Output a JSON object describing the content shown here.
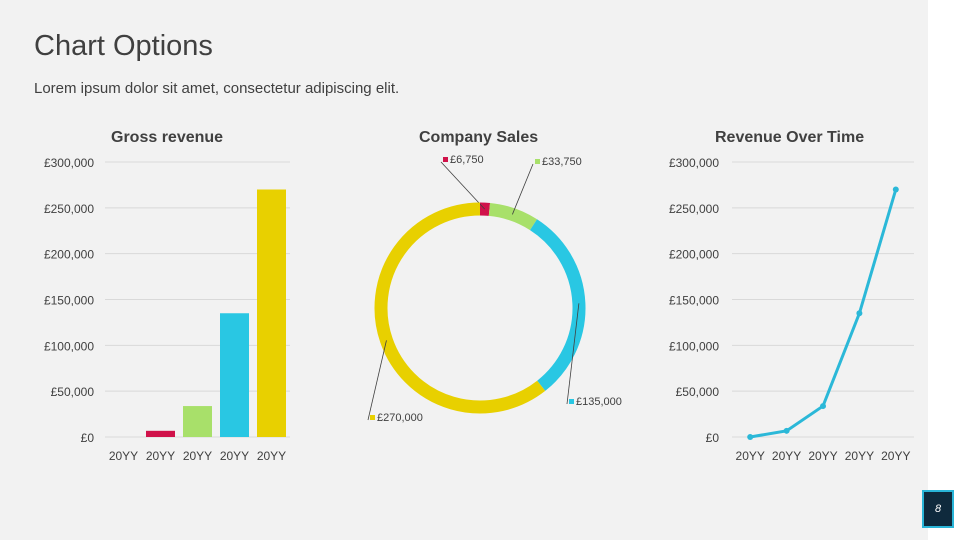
{
  "slide": {
    "title": "Chart Options",
    "subtitle": "Lorem ipsum dolor sit amet, consectetur adipiscing elit.",
    "page_number": "8"
  },
  "colors": {
    "red": "#d0124a",
    "green": "#a8e06a",
    "blue": "#29c7e3",
    "yellow": "#e8d000",
    "line": "#2bb8d8"
  },
  "chart_data": [
    {
      "type": "bar",
      "title": "Gross revenue",
      "categories": [
        "20YY",
        "20YY",
        "20YY",
        "20YY",
        "20YY"
      ],
      "values": [
        0,
        6750,
        33750,
        135000,
        270000
      ],
      "bar_colors": [
        "#d0124a",
        "#d0124a",
        "#a8e06a",
        "#29c7e3",
        "#e8d000"
      ],
      "ylim": [
        0,
        300000
      ],
      "yticks": [
        "£300,000",
        "£250,000",
        "£200,000",
        "£150,000",
        "£100,000",
        "£50,000",
        "£0"
      ],
      "grid": true
    },
    {
      "type": "pie",
      "title": "Company Sales",
      "slices": [
        {
          "label": "£6,750",
          "value": 6750,
          "color": "#d0124a"
        },
        {
          "label": "£33,750",
          "value": 33750,
          "color": "#a8e06a"
        },
        {
          "label": "£135,000",
          "value": 135000,
          "color": "#29c7e3"
        },
        {
          "label": "£270,000",
          "value": 270000,
          "color": "#e8d000"
        }
      ]
    },
    {
      "type": "line",
      "title": "Revenue Over Time",
      "categories": [
        "20YY",
        "20YY",
        "20YY",
        "20YY",
        "20YY"
      ],
      "values": [
        0,
        6750,
        33750,
        135000,
        270000
      ],
      "ylim": [
        0,
        300000
      ],
      "yticks": [
        "£300,000",
        "£250,000",
        "£200,000",
        "£150,000",
        "£100,000",
        "£50,000",
        "£0"
      ],
      "grid": true
    }
  ]
}
